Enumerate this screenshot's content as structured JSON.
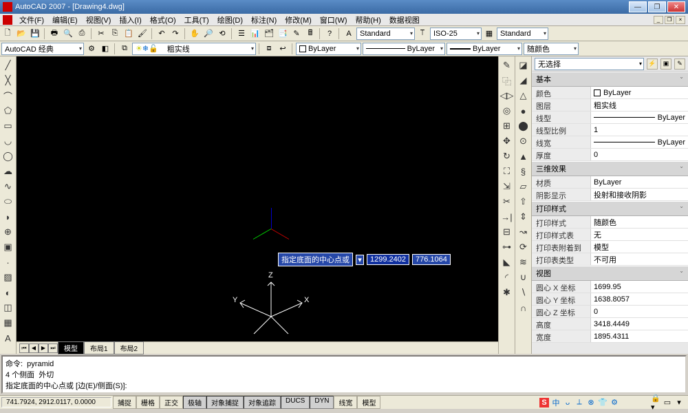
{
  "title": "AutoCAD 2007 - [Drawing4.dwg]",
  "menu": [
    "文件(F)",
    "编辑(E)",
    "视图(V)",
    "插入(I)",
    "格式(O)",
    "工具(T)",
    "绘图(D)",
    "标注(N)",
    "修改(M)",
    "窗口(W)",
    "帮助(H)",
    "数据视图"
  ],
  "styles": {
    "text_style": "Standard",
    "dim_style": "ISO-25",
    "table_style": "Standard"
  },
  "workspace": "AutoCAD 经典",
  "layer": {
    "name": "粗实线",
    "linetype": "ByLayer",
    "lineweight": "ByLayer",
    "color_name": "ByLayer",
    "color_select": "随颜色"
  },
  "properties": {
    "selection": "无选择",
    "sections": {
      "basic": {
        "title": "基本",
        "rows": [
          {
            "label": "颜色",
            "val": "ByLayer",
            "swatch": "#ffffff"
          },
          {
            "label": "图层",
            "val": "粗实线"
          },
          {
            "label": "线型",
            "val": "ByLayer",
            "line": true
          },
          {
            "label": "线型比例",
            "val": "1"
          },
          {
            "label": "线宽",
            "val": "ByLayer",
            "line": true
          },
          {
            "label": "厚度",
            "val": "0"
          }
        ]
      },
      "threeD": {
        "title": "三维效果",
        "rows": [
          {
            "label": "材质",
            "val": "ByLayer"
          },
          {
            "label": "阴影显示",
            "val": "投射和接收阴影"
          }
        ]
      },
      "plot": {
        "title": "打印样式",
        "rows": [
          {
            "label": "打印样式",
            "val": "随颜色"
          },
          {
            "label": "打印样式表",
            "val": "无"
          },
          {
            "label": "打印表附着到",
            "val": "模型"
          },
          {
            "label": "打印表类型",
            "val": "不可用"
          }
        ]
      },
      "view": {
        "title": "视图",
        "rows": [
          {
            "label": "圆心 X 坐标",
            "val": "1699.95"
          },
          {
            "label": "圆心 Y 坐标",
            "val": "1638.8057"
          },
          {
            "label": "圆心 Z 坐标",
            "val": "0"
          },
          {
            "label": "高度",
            "val": "3418.4449"
          },
          {
            "label": "宽度",
            "val": "1895.4311"
          }
        ]
      }
    }
  },
  "model_tabs": [
    "模型",
    "布局1",
    "布局2"
  ],
  "cmd": {
    "line1": "命令:  pyramid",
    "line2": "4 个侧面  外切",
    "prompt": "指定底面的中心点或 [边(E)/侧面(S)]:"
  },
  "dynamic_input": {
    "prompt": "指定底面的中心点或",
    "x": "1299.2402",
    "y": "776.1064"
  },
  "axes": {
    "x": "X",
    "y": "Y",
    "z": "Z"
  },
  "status": {
    "coords": "741.7924, 2912.0117, 0.0000",
    "buttons": [
      {
        "label": "捕捉",
        "on": false
      },
      {
        "label": "栅格",
        "on": false
      },
      {
        "label": "正交",
        "on": false
      },
      {
        "label": "极轴",
        "on": true
      },
      {
        "label": "对象捕捉",
        "on": true
      },
      {
        "label": "对象追踪",
        "on": true
      },
      {
        "label": "DUCS",
        "on": true
      },
      {
        "label": "DYN",
        "on": true
      },
      {
        "label": "线宽",
        "on": false
      },
      {
        "label": "模型",
        "on": false
      }
    ],
    "tray": [
      "S",
      "中",
      "ᴗ",
      "⟂",
      "⊗",
      "👕",
      "⚙"
    ]
  },
  "colors": {
    "titlebar": "#3b6ba5",
    "canvas": "#000000",
    "accent": "#2547a8",
    "grid": "#ece9d8"
  }
}
